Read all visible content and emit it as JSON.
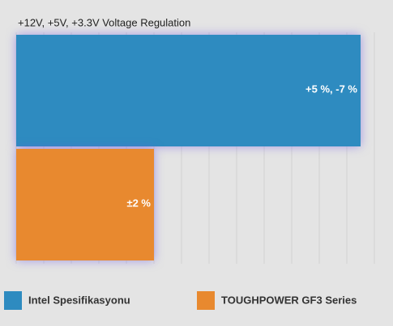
{
  "chart_data": {
    "type": "hbar",
    "title": "+12V, +5V, +3.3V Voltage Regulation",
    "categories": [
      "Intel Spesifikasyonu",
      "TOUGHPOWER GF3 Series"
    ],
    "series": [
      {
        "name": "Intel Spesifikasyonu",
        "color": "#2e8bc0"
      },
      {
        "name": "TOUGHPOWER GF3 Series",
        "color": "#e8892f"
      }
    ],
    "values": [
      5,
      2
    ],
    "value_labels": [
      "+5 %, -7 %",
      "±2 %"
    ],
    "xlim": [
      0,
      5.2
    ],
    "xticks": [
      0,
      0.4,
      0.8,
      1.2,
      1.6,
      2,
      2.4,
      2.8,
      3.2,
      3.6,
      4,
      4.4,
      4.8,
      5.2
    ],
    "grid": true
  }
}
